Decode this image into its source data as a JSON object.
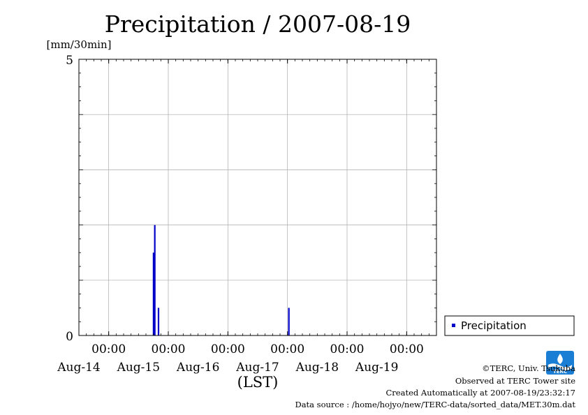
{
  "chart_data": {
    "type": "bar",
    "title": "Precipitation / 2007-08-19",
    "ylabel": "[mm/30min]",
    "xlabel": "(LST)",
    "ylim": [
      0,
      5
    ],
    "yticks": [
      "5",
      "0"
    ],
    "grid": true,
    "x_start": "Aug-14 00:00",
    "x_range_hours": [
      -12,
      132
    ],
    "x_ticks": [
      {
        "time": "00:00",
        "date": "Aug-14",
        "hour": 0
      },
      {
        "time": "00:00",
        "date": "Aug-15",
        "hour": 24
      },
      {
        "time": "00:00",
        "date": "Aug-16",
        "hour": 48
      },
      {
        "time": "00:00",
        "date": "Aug-17",
        "hour": 72
      },
      {
        "time": "00:00",
        "date": "Aug-18",
        "hour": 96
      },
      {
        "time": "00:00",
        "date": "Aug-19",
        "hour": 120
      }
    ],
    "series": [
      {
        "name": "Precipitation",
        "color": "#0000c8",
        "points": [
          {
            "hour": 18.0,
            "value": 1.5
          },
          {
            "hour": 18.5,
            "value": 2.0
          },
          {
            "hour": 20.0,
            "value": 0.5
          },
          {
            "hour": 72.5,
            "value": 0.5
          }
        ]
      }
    ],
    "legend_position": "right"
  },
  "footer": {
    "copyright": "©TERC, Univ. Tsukuba",
    "observed": "Observed at TERC Tower site",
    "created": "Created Automatically at 2007-08-19/23:32:17",
    "source": "Data source : /home/hojyo/new/TERC-data/sorted_data/MET.30m.dat",
    "logo_text": "TERC"
  },
  "colors": {
    "series": "#0000c8",
    "grid": "#aaaaaa",
    "logo": "#1a7fd4"
  }
}
